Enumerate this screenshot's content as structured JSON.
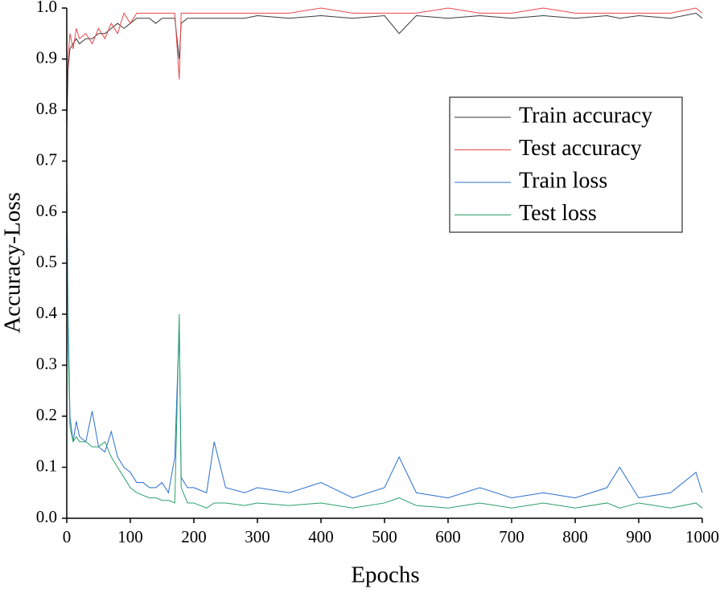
{
  "chart_data": {
    "type": "line",
    "x_label": "Epochs",
    "y_label": "Accuracy-Loss",
    "x": [
      0,
      2,
      5,
      10,
      15,
      20,
      30,
      40,
      50,
      60,
      70,
      80,
      90,
      100,
      110,
      120,
      130,
      140,
      150,
      160,
      170,
      177,
      180,
      190,
      200,
      220,
      232,
      250,
      280,
      300,
      350,
      400,
      450,
      500,
      523,
      550,
      600,
      650,
      700,
      750,
      800,
      850,
      870,
      900,
      950,
      990,
      1000
    ],
    "series": [
      {
        "name": "Train accuracy",
        "color": "#3a3a3a",
        "values": [
          0.76,
          0.88,
          0.92,
          0.93,
          0.94,
          0.93,
          0.94,
          0.94,
          0.95,
          0.95,
          0.96,
          0.97,
          0.96,
          0.97,
          0.98,
          0.98,
          0.98,
          0.97,
          0.98,
          0.98,
          0.98,
          0.9,
          0.97,
          0.98,
          0.98,
          0.98,
          0.98,
          0.98,
          0.98,
          0.985,
          0.98,
          0.985,
          0.98,
          0.985,
          0.95,
          0.985,
          0.98,
          0.985,
          0.98,
          0.985,
          0.98,
          0.985,
          0.98,
          0.985,
          0.98,
          0.99,
          0.98
        ]
      },
      {
        "name": "Test accuracy",
        "color": "#e8474b",
        "values": [
          0.85,
          0.9,
          0.95,
          0.92,
          0.96,
          0.94,
          0.95,
          0.93,
          0.96,
          0.94,
          0.97,
          0.95,
          0.99,
          0.97,
          0.99,
          0.99,
          0.99,
          0.99,
          0.99,
          0.99,
          0.99,
          0.86,
          0.99,
          0.99,
          0.99,
          0.99,
          0.99,
          0.99,
          0.99,
          0.99,
          0.99,
          1.0,
          0.99,
          0.99,
          0.99,
          0.99,
          1.0,
          0.99,
          0.99,
          1.0,
          0.99,
          0.99,
          0.99,
          0.99,
          0.99,
          1.0,
          0.99
        ]
      },
      {
        "name": "Train loss",
        "color": "#2a6fd0",
        "values": [
          0.68,
          0.4,
          0.2,
          0.15,
          0.19,
          0.16,
          0.15,
          0.21,
          0.14,
          0.13,
          0.17,
          0.12,
          0.1,
          0.09,
          0.07,
          0.07,
          0.06,
          0.06,
          0.07,
          0.05,
          0.12,
          0.38,
          0.08,
          0.06,
          0.06,
          0.05,
          0.15,
          0.06,
          0.05,
          0.06,
          0.05,
          0.07,
          0.04,
          0.06,
          0.12,
          0.05,
          0.04,
          0.06,
          0.04,
          0.05,
          0.04,
          0.06,
          0.1,
          0.04,
          0.05,
          0.09,
          0.05
        ]
      },
      {
        "name": "Test loss",
        "color": "#2aa06a",
        "values": [
          0.66,
          0.35,
          0.18,
          0.15,
          0.16,
          0.15,
          0.15,
          0.14,
          0.14,
          0.15,
          0.12,
          0.1,
          0.08,
          0.06,
          0.05,
          0.045,
          0.04,
          0.04,
          0.035,
          0.035,
          0.03,
          0.4,
          0.06,
          0.03,
          0.03,
          0.02,
          0.03,
          0.03,
          0.025,
          0.03,
          0.025,
          0.03,
          0.02,
          0.03,
          0.04,
          0.025,
          0.02,
          0.03,
          0.02,
          0.03,
          0.02,
          0.03,
          0.02,
          0.03,
          0.02,
          0.03,
          0.02
        ]
      }
    ],
    "xlim": [
      0,
      1000
    ],
    "xticks": [
      0,
      100,
      200,
      300,
      400,
      500,
      600,
      700,
      800,
      900,
      1000
    ],
    "ylim": [
      0,
      1
    ],
    "yticks": [
      {
        "value": 0,
        "label": "0.0"
      },
      0.1,
      0.2,
      0.3,
      0.4,
      0.5,
      0.6,
      0.7,
      0.8,
      0.9,
      {
        "value": 1,
        "label": "1.0"
      }
    ],
    "legend": "upper right"
  }
}
